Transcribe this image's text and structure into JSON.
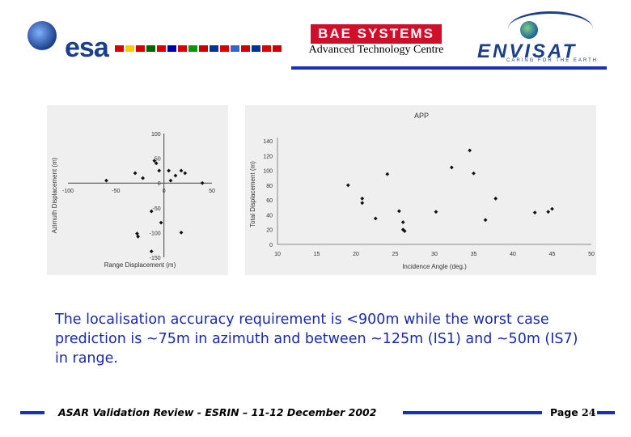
{
  "header": {
    "esa_logo_text": "esa",
    "bae_logo_text": "BAE SYSTEMS",
    "centre_name": "Advanced Technology Centre",
    "envisat_logo_text": "ENVISAT",
    "envisat_tagline": "CARING FOR THE EARTH",
    "line_color": "#1c2fb8"
  },
  "body": {
    "text": "The localisation accuracy requirement is <900m while the worst case prediction is ~75m in azimuth and between ~125m (IS1) and ~50m (IS7) in range."
  },
  "footer": {
    "review_text": "ASAR Validation Review - ESRIN – 11-12 December 2002",
    "page_label": "Page",
    "page_number": "24"
  },
  "chart_data": [
    {
      "type": "scatter",
      "title": "",
      "xlabel": "Range Displacement (m)",
      "ylabel": "Azimuth Displacement (m)",
      "xlim": [
        -100,
        50
      ],
      "ylim": [
        -150,
        100
      ],
      "x_ticks": [
        "-100",
        "-50",
        "0",
        "50"
      ],
      "y_ticks": [
        "100",
        "50",
        "0",
        "-50",
        "-100",
        "-150"
      ],
      "points": [
        {
          "x": -60,
          "y": 5
        },
        {
          "x": -30,
          "y": 20
        },
        {
          "x": -22,
          "y": 10
        },
        {
          "x": -10,
          "y": 45
        },
        {
          "x": -8,
          "y": 40
        },
        {
          "x": -5,
          "y": 25
        },
        {
          "x": 5,
          "y": 25
        },
        {
          "x": 7,
          "y": 5
        },
        {
          "x": 12,
          "y": 15
        },
        {
          "x": 18,
          "y": 25
        },
        {
          "x": 22,
          "y": 20
        },
        {
          "x": 40,
          "y": 0
        },
        {
          "x": -13,
          "y": -57
        },
        {
          "x": -3,
          "y": -80
        },
        {
          "x": -28,
          "y": -102
        },
        {
          "x": -27,
          "y": -108
        },
        {
          "x": 18,
          "y": -100
        },
        {
          "x": -13,
          "y": -138
        }
      ],
      "grid": false,
      "color": "#111111"
    },
    {
      "type": "scatter",
      "title": "APP",
      "xlabel": "Incidence Angle (deg.)",
      "ylabel": "Total Displacement (m)",
      "xlim": [
        10,
        50
      ],
      "ylim": [
        0,
        140
      ],
      "x_ticks": [
        "10",
        "15",
        "20",
        "25",
        "30",
        "35",
        "40",
        "45",
        "50"
      ],
      "y_ticks": [
        "0",
        "20",
        "40",
        "60",
        "80",
        "100",
        "120",
        "140"
      ],
      "points": [
        {
          "x": 19,
          "y": 80
        },
        {
          "x": 20.8,
          "y": 62
        },
        {
          "x": 20.8,
          "y": 56
        },
        {
          "x": 22.5,
          "y": 35
        },
        {
          "x": 24,
          "y": 95
        },
        {
          "x": 25.5,
          "y": 45
        },
        {
          "x": 26,
          "y": 30
        },
        {
          "x": 26,
          "y": 20
        },
        {
          "x": 26.2,
          "y": 18
        },
        {
          "x": 30.2,
          "y": 44
        },
        {
          "x": 32.2,
          "y": 104
        },
        {
          "x": 34.5,
          "y": 127
        },
        {
          "x": 35,
          "y": 96
        },
        {
          "x": 36.5,
          "y": 33
        },
        {
          "x": 37.8,
          "y": 62
        },
        {
          "x": 42.8,
          "y": 43
        },
        {
          "x": 44.5,
          "y": 44
        },
        {
          "x": 45,
          "y": 48
        }
      ],
      "grid": false,
      "color": "#111111"
    }
  ]
}
